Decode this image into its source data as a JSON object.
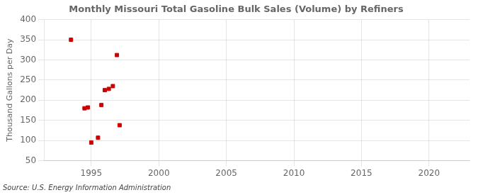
{
  "chart_data": {
    "type": "scatter",
    "title": "Monthly Missouri Total Gasoline Bulk Sales (Volume) by Refiners",
    "ylabel": "Thousand Gallons per Day",
    "source": "Source: U.S. Energy Information Administration",
    "x": [
      1993.5,
      1994.5,
      1994.75,
      1995.0,
      1995.5,
      1995.75,
      1996.0,
      1996.3,
      1996.6,
      1996.9,
      1997.1
    ],
    "values": [
      350,
      180,
      182,
      95,
      107,
      188,
      225,
      228,
      235,
      312,
      138
    ],
    "xlim": [
      1991.5,
      2023
    ],
    "ylim": [
      50,
      400
    ],
    "xticks": [
      1995,
      2000,
      2005,
      2010,
      2015,
      2020
    ],
    "yticks": [
      50,
      100,
      150,
      200,
      250,
      300,
      350,
      400
    ],
    "color": "#cc0000",
    "marker": "square",
    "grid": true
  }
}
